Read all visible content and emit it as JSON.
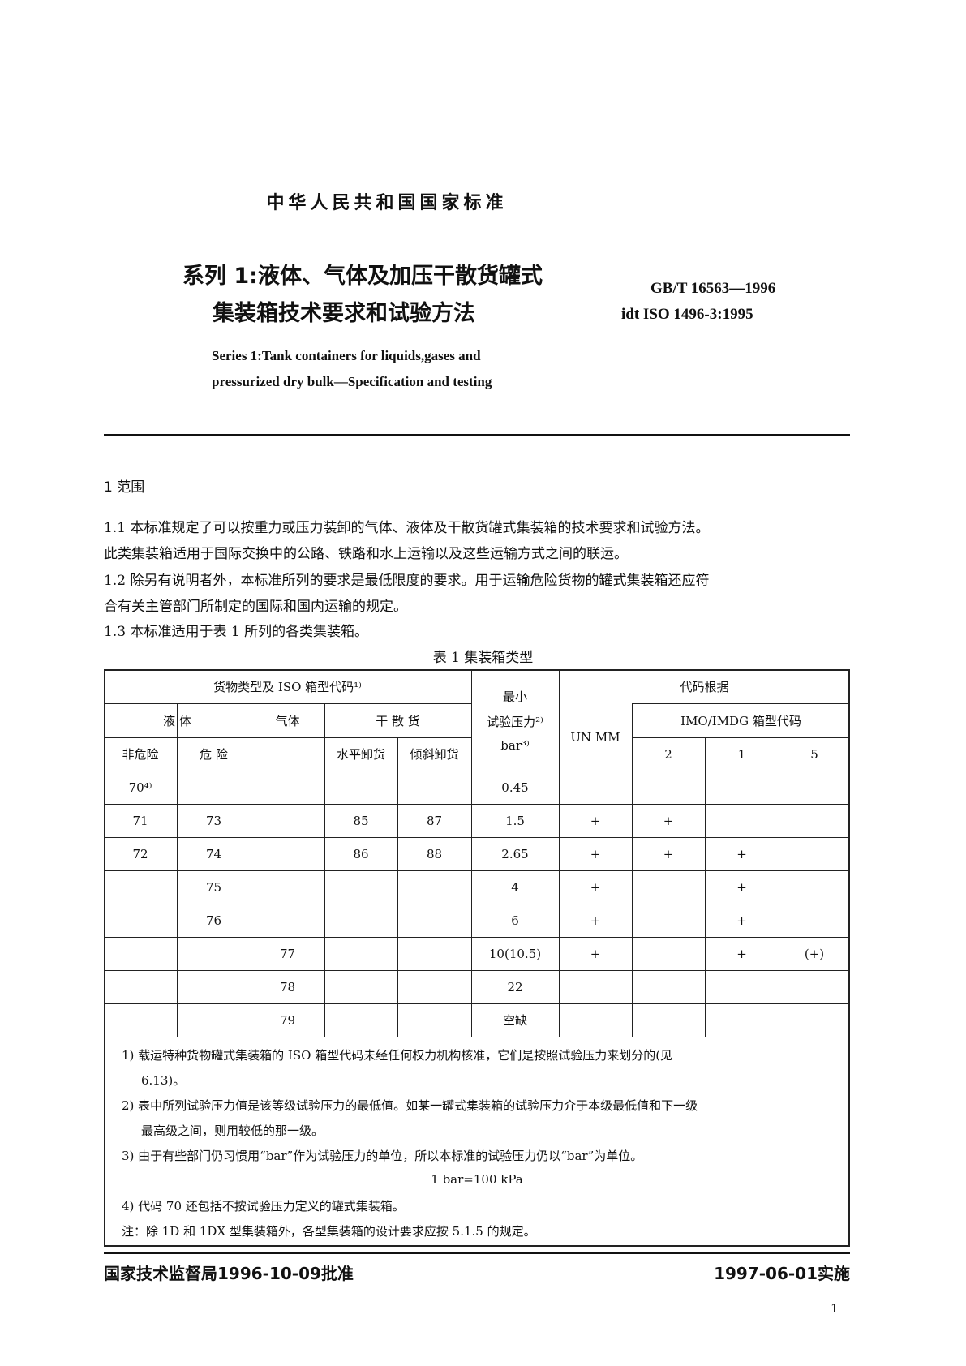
{
  "header": {
    "national": "中华人民共和国国家标准",
    "title_line1": "系列 1:液体、气体及加压干散货罐式",
    "title_line2": "集装箱技术要求和试验方法",
    "code": "GB/T 16563—1996",
    "idt": "idt ISO 1496-3:1995",
    "en_line1": "Series 1:Tank containers for liquids,gases and",
    "en_line2": "pressurized dry bulk—Specification and testing"
  },
  "section": {
    "heading": "1  范围",
    "p1a": "1.1  本标准规定了可以按重力或压力装卸的气体、液体及干散货罐式集装箱的技术要求和试验方法。",
    "p1b": "此类集装箱适用于国际交换中的公路、铁路和水上运输以及这些运输方式之间的联运。",
    "p2a": "1.2  除另有说明者外，本标准所列的要求是最低限度的要求。用于运输危险货物的罐式集装箱还应符",
    "p2b": "合有关主管部门所制定的国际和国内运输的规定。",
    "p3": "1.3  本标准适用于表 1 所列的各类集装箱。"
  },
  "table": {
    "caption": "表 1   集装箱类型",
    "h_cargo": "货物类型及 ISO 箱型代码¹⁾",
    "h_liquid": "液      体",
    "h_gas": "气体",
    "h_dry": "干   散   货",
    "h_nonhaz": "非危险",
    "h_haz": "危      险",
    "h_horiz": "水平卸货",
    "h_tilt": "倾斜卸货",
    "h_press1": "最小",
    "h_press2": "试验压力²⁾",
    "h_press3": "bar³⁾",
    "h_basis": "代码根据",
    "h_un": "UN   MM",
    "h_imo": "IMO/IMDG 箱型代码",
    "h_2": "2",
    "h_1": "1",
    "h_5": "5",
    "rows": [
      [
        "70⁴⁾",
        "",
        "",
        "",
        "",
        "0.45",
        "",
        "",
        "",
        ""
      ],
      [
        "71",
        "73",
        "",
        "85",
        "87",
        "1.5",
        "+",
        "+",
        "",
        ""
      ],
      [
        "72",
        "74",
        "",
        "86",
        "88",
        "2.65",
        "+",
        "+",
        "+",
        ""
      ],
      [
        "",
        "75",
        "",
        "",
        "",
        "4",
        "+",
        "",
        "+",
        ""
      ],
      [
        "",
        "76",
        "",
        "",
        "",
        "6",
        "+",
        "",
        "+",
        ""
      ],
      [
        "",
        "",
        "77",
        "",
        "",
        "10(10.5)",
        "+",
        "",
        "+",
        "(+)"
      ],
      [
        "",
        "",
        "78",
        "",
        "",
        "22",
        "",
        "",
        "",
        ""
      ],
      [
        "",
        "",
        "79",
        "",
        "",
        "空缺",
        "",
        "",
        "",
        ""
      ]
    ],
    "notes": [
      "1) 载运特种货物罐式集装箱的 ISO 箱型代码未经任何权力机构核准，它们是按照试验压力来划分的(见",
      "6.13)。",
      "2) 表中所列试验压力值是该等级试验压力的最低值。如某一罐式集装箱的试验压力介于本级最低值和下一级",
      "最高级之间，则用较低的那一级。",
      "3) 由于有些部门仍习惯用“bar”作为试验压力的单位，所以本标准的试验压力仍以“bar”为单位。",
      "1 bar=100 kPa",
      "4) 代码 70 还包括不按试验压力定义的罐式集装箱。",
      "注：除 1D 和 1DX 型集装箱外，各型集装箱的设计要求应按 5.1.5 的规定。"
    ]
  },
  "footer": {
    "approved": "国家技术监督局1996-10-09批准",
    "effective": "1997-06-01实施",
    "page": "1"
  }
}
